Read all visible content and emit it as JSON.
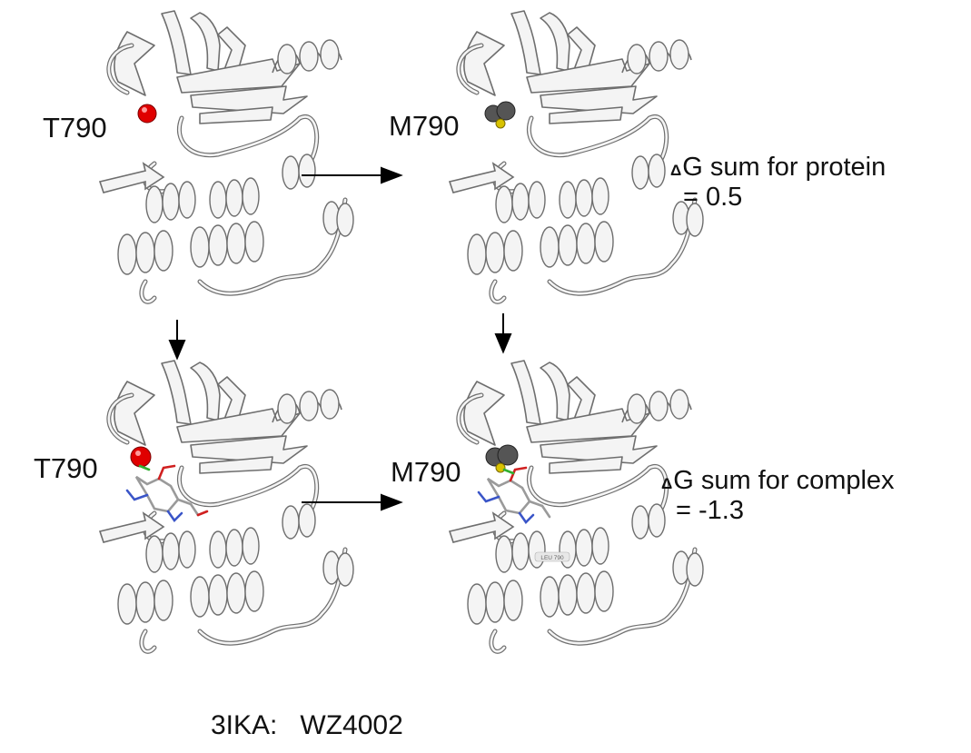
{
  "panels": [
    {
      "id": "top-left",
      "residue_label": "T790",
      "residue_color": "#e00000",
      "ligand_bound": false
    },
    {
      "id": "top-right",
      "residue_label": "M790",
      "residue_color": "#555555",
      "ligand_bound": false
    },
    {
      "id": "bottom-left",
      "residue_label": "T790",
      "residue_color": "#e00000",
      "ligand_bound": true
    },
    {
      "id": "bottom-right",
      "residue_label": "M790",
      "residue_color": "#555555",
      "ligand_bound": true
    }
  ],
  "annotations": {
    "protein": {
      "delta_symbol": "Δ",
      "label": "G sum for protein",
      "value": "= 0.5"
    },
    "complex": {
      "delta_symbol": "Δ",
      "label": "G sum for complex",
      "value": "= -1.3"
    }
  },
  "residue_tag": "LEU 790",
  "footer": {
    "pdb_id": "3IKA:",
    "ligand": "WZ4002"
  },
  "colors": {
    "ribbon": "#f4f4f4",
    "ribbon_edge": "#6e6e6e",
    "threonine": "#e00000",
    "methionine": "#555555",
    "sulfur": "#d8c200",
    "ligand_nitrogen": "#3a55c8",
    "ligand_oxygen": "#d02020",
    "ligand_chlorine": "#30b030",
    "arrow": "#000000"
  }
}
